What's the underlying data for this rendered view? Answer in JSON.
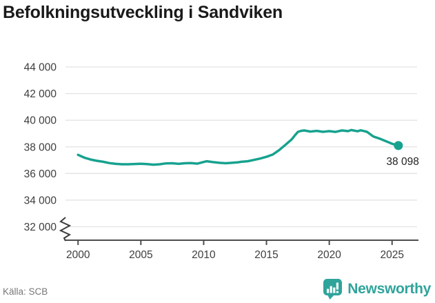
{
  "title": "Befolkningsutveckling i Sandviken",
  "source": "Källa: SCB",
  "brand": {
    "name": "Newsworthy",
    "color": "#2FA49B",
    "icon": "speech-bubble-bar-chart"
  },
  "chart_data": {
    "type": "line",
    "title": "Befolkningsutveckling i Sandviken",
    "xlabel": "",
    "ylabel": "",
    "x_ticks": [
      2000,
      2005,
      2010,
      2015,
      2020,
      2025
    ],
    "y_ticks": [
      32000,
      34000,
      36000,
      38000,
      40000,
      42000,
      44000
    ],
    "y_tick_labels": [
      "32 000",
      "34 000",
      "36 000",
      "38 000",
      "40 000",
      "42 000",
      "44 000"
    ],
    "xlim": [
      1999,
      2027.1
    ],
    "ylim": [
      32000,
      44000
    ],
    "axis_break_at_bottom": true,
    "grid": true,
    "legend": "none",
    "line_color": "#17A28F",
    "end_value": 38098,
    "end_label": "38 098",
    "series": [
      {
        "name": "Befolkning",
        "points": [
          [
            2000.0,
            37400
          ],
          [
            2000.5,
            37190
          ],
          [
            2001.0,
            37050
          ],
          [
            2001.5,
            36950
          ],
          [
            2002.0,
            36880
          ],
          [
            2002.5,
            36780
          ],
          [
            2003.0,
            36720
          ],
          [
            2003.5,
            36690
          ],
          [
            2004.0,
            36690
          ],
          [
            2004.5,
            36710
          ],
          [
            2005.0,
            36730
          ],
          [
            2005.5,
            36700
          ],
          [
            2006.0,
            36660
          ],
          [
            2006.5,
            36690
          ],
          [
            2007.0,
            36760
          ],
          [
            2007.5,
            36770
          ],
          [
            2008.0,
            36720
          ],
          [
            2008.5,
            36770
          ],
          [
            2009.0,
            36780
          ],
          [
            2009.5,
            36740
          ],
          [
            2010.0,
            36860
          ],
          [
            2010.25,
            36920
          ],
          [
            2010.75,
            36850
          ],
          [
            2011.25,
            36800
          ],
          [
            2011.75,
            36770
          ],
          [
            2012.25,
            36800
          ],
          [
            2012.75,
            36840
          ],
          [
            2013.0,
            36880
          ],
          [
            2013.5,
            36920
          ],
          [
            2014.0,
            37020
          ],
          [
            2014.5,
            37120
          ],
          [
            2015.0,
            37250
          ],
          [
            2015.5,
            37420
          ],
          [
            2016.0,
            37750
          ],
          [
            2016.5,
            38150
          ],
          [
            2017.0,
            38550
          ],
          [
            2017.25,
            38850
          ],
          [
            2017.5,
            39120
          ],
          [
            2017.75,
            39200
          ],
          [
            2018.0,
            39230
          ],
          [
            2018.5,
            39150
          ],
          [
            2019.0,
            39200
          ],
          [
            2019.5,
            39130
          ],
          [
            2020.0,
            39180
          ],
          [
            2020.5,
            39120
          ],
          [
            2021.0,
            39230
          ],
          [
            2021.5,
            39180
          ],
          [
            2021.75,
            39260
          ],
          [
            2022.25,
            39170
          ],
          [
            2022.5,
            39240
          ],
          [
            2022.75,
            39190
          ],
          [
            2023.0,
            39130
          ],
          [
            2023.25,
            38950
          ],
          [
            2023.5,
            38780
          ],
          [
            2024.0,
            38620
          ],
          [
            2024.5,
            38430
          ],
          [
            2025.0,
            38230
          ],
          [
            2025.5,
            38098
          ]
        ]
      }
    ]
  }
}
